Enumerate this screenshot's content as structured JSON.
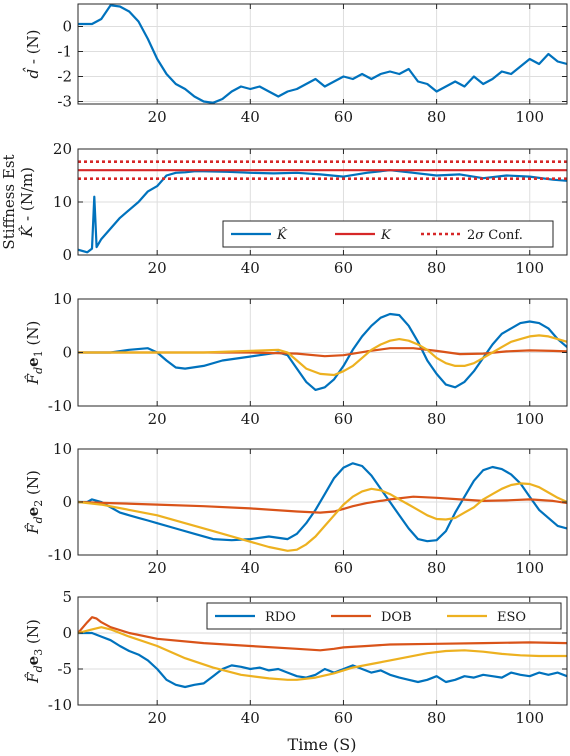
{
  "chart_data": [
    {
      "type": "line",
      "ylabel": "ˆd - (N)",
      "xlim": [
        3,
        108
      ],
      "ylim": [
        -3.1,
        0.9
      ],
      "xticks": [
        20,
        40,
        60,
        80,
        100
      ],
      "yticks": [
        -3,
        -2,
        -1,
        0
      ],
      "grid": true,
      "series": [
        {
          "color": "#0072BD",
          "x": [
            3,
            6,
            8,
            10,
            12,
            14,
            16,
            18,
            20,
            22,
            24,
            26,
            28,
            30,
            32,
            34,
            36,
            38,
            40,
            42,
            44,
            46,
            48,
            50,
            52,
            54,
            56,
            58,
            60,
            62,
            64,
            66,
            68,
            70,
            72,
            74,
            76,
            78,
            80,
            82,
            84,
            86,
            88,
            90,
            92,
            94,
            96,
            98,
            100,
            102,
            104,
            106,
            108
          ],
          "y": [
            0.1,
            0.1,
            0.3,
            0.85,
            0.8,
            0.6,
            0.2,
            -0.5,
            -1.3,
            -1.9,
            -2.3,
            -2.5,
            -2.8,
            -3.0,
            -3.05,
            -2.9,
            -2.6,
            -2.4,
            -2.5,
            -2.4,
            -2.6,
            -2.8,
            -2.6,
            -2.5,
            -2.3,
            -2.1,
            -2.4,
            -2.2,
            -2.0,
            -2.1,
            -1.9,
            -2.1,
            -1.9,
            -1.8,
            -1.9,
            -1.7,
            -2.2,
            -2.3,
            -2.6,
            -2.4,
            -2.2,
            -2.4,
            -2.0,
            -2.3,
            -2.1,
            -1.8,
            -1.9,
            -1.6,
            -1.3,
            -1.5,
            -1.1,
            -1.4,
            -1.5
          ]
        }
      ]
    },
    {
      "type": "line",
      "ylabel_top": "Stiffness Est",
      "ylabel": "ˆK - (N/m)",
      "xlim": [
        3,
        108
      ],
      "ylim": [
        0,
        20
      ],
      "xticks": [
        20,
        40,
        60,
        80,
        100
      ],
      "yticks": [
        0,
        10,
        20
      ],
      "grid": true,
      "legend": "bottom-right",
      "series": [
        {
          "name": "ˆK",
          "color": "#0072BD",
          "x": [
            3,
            5,
            6,
            6.5,
            7,
            8,
            10,
            12,
            14,
            16,
            18,
            20,
            22,
            24,
            26,
            28,
            30,
            35,
            40,
            45,
            50,
            55,
            60,
            65,
            70,
            75,
            80,
            85,
            90,
            95,
            100,
            105,
            108
          ],
          "y": [
            1.0,
            0.5,
            1.2,
            11.0,
            1.5,
            3.0,
            5.0,
            7.0,
            8.5,
            10.0,
            12.0,
            13.0,
            15.0,
            15.5,
            15.6,
            15.8,
            15.8,
            15.7,
            15.5,
            15.4,
            15.5,
            15.2,
            14.8,
            15.5,
            16.0,
            15.5,
            15.0,
            15.2,
            14.5,
            15.0,
            14.8,
            14.2,
            14.0
          ]
        },
        {
          "name": "K",
          "color": "#D62728",
          "x": [
            3,
            108
          ],
          "y": [
            16,
            16
          ]
        },
        {
          "name": "2σ Conf.",
          "color": "#D62728",
          "dashed": true,
          "x": [
            3,
            108
          ],
          "y": [
            17.6,
            17.6
          ]
        },
        {
          "color": "#D62728",
          "dashed": true,
          "x": [
            3,
            108
          ],
          "y": [
            14.4,
            14.4
          ]
        }
      ]
    },
    {
      "type": "line",
      "ylabel": "ˆFde1 (N)",
      "xlim": [
        3,
        108
      ],
      "ylim": [
        -10,
        10
      ],
      "xticks": [
        20,
        40,
        60,
        80,
        100
      ],
      "yticks": [
        -10,
        0,
        10
      ],
      "grid": true,
      "series": [
        {
          "name": "RDO",
          "color": "#0072BD",
          "x": [
            3,
            6,
            10,
            14,
            18,
            20,
            22,
            24,
            26,
            30,
            34,
            38,
            42,
            46,
            48,
            50,
            52,
            54,
            56,
            58,
            60,
            62,
            64,
            66,
            68,
            70,
            72,
            74,
            76,
            78,
            80,
            82,
            84,
            86,
            88,
            90,
            92,
            94,
            96,
            98,
            100,
            102,
            104,
            106,
            108
          ],
          "y": [
            0,
            0,
            0,
            0.5,
            0.8,
            0,
            -1.5,
            -2.8,
            -3.0,
            -2.5,
            -1.5,
            -1.0,
            -0.5,
            0,
            -0.5,
            -3.0,
            -5.5,
            -7.0,
            -6.5,
            -5.0,
            -2.5,
            0.5,
            3.0,
            5.0,
            6.5,
            7.2,
            7.0,
            5.0,
            2.0,
            -1.5,
            -4.0,
            -6.0,
            -6.5,
            -5.5,
            -3.5,
            -1.0,
            1.5,
            3.5,
            4.5,
            5.5,
            5.8,
            5.5,
            4.5,
            2.5,
            1.0
          ]
        },
        {
          "name": "DOB",
          "color": "#D95319",
          "x": [
            3,
            20,
            40,
            50,
            56,
            60,
            65,
            70,
            75,
            80,
            85,
            90,
            95,
            100,
            105,
            108
          ],
          "y": [
            0,
            0,
            0,
            -0.2,
            -0.7,
            -0.5,
            0.2,
            0.8,
            0.8,
            0.3,
            -0.3,
            -0.2,
            0.2,
            0.4,
            0.3,
            0.2
          ]
        },
        {
          "name": "ESO",
          "color": "#EDB120",
          "x": [
            3,
            10,
            20,
            30,
            40,
            46,
            48,
            50,
            52,
            55,
            58,
            60,
            62,
            64,
            66,
            68,
            70,
            72,
            74,
            76,
            78,
            80,
            82,
            84,
            86,
            88,
            90,
            92,
            94,
            96,
            98,
            100,
            102,
            104,
            106,
            108
          ],
          "y": [
            0,
            0,
            0,
            0,
            0.3,
            0.5,
            0,
            -1.5,
            -3.0,
            -4.0,
            -4.2,
            -3.5,
            -2.5,
            -1.0,
            0.5,
            1.5,
            2.2,
            2.5,
            2.2,
            1.5,
            0.5,
            -1.0,
            -2.0,
            -2.5,
            -2.5,
            -2.0,
            -1.0,
            0,
            1.0,
            2.0,
            2.5,
            3.0,
            3.2,
            3.0,
            2.5,
            2.0
          ]
        }
      ]
    },
    {
      "type": "line",
      "ylabel": "ˆFde2 (N)",
      "xlim": [
        3,
        108
      ],
      "ylim": [
        -10,
        10
      ],
      "xticks": [
        20,
        40,
        60,
        80,
        100
      ],
      "yticks": [
        -10,
        0,
        10
      ],
      "grid": true,
      "series": [
        {
          "name": "RDO",
          "color": "#0072BD",
          "x": [
            3,
            5,
            6,
            8,
            10,
            12,
            14,
            16,
            18,
            20,
            24,
            28,
            32,
            36,
            40,
            44,
            48,
            50,
            52,
            54,
            56,
            58,
            60,
            62,
            64,
            66,
            68,
            70,
            72,
            74,
            76,
            78,
            80,
            82,
            84,
            86,
            88,
            90,
            92,
            94,
            96,
            98,
            100,
            102,
            104,
            106,
            108
          ],
          "y": [
            0,
            0,
            0.5,
            0,
            -1.0,
            -2.0,
            -2.5,
            -3.0,
            -3.5,
            -4.0,
            -5.0,
            -6.0,
            -7.0,
            -7.2,
            -7.0,
            -6.5,
            -7.0,
            -6.0,
            -4.0,
            -1.5,
            1.5,
            4.5,
            6.5,
            7.3,
            6.8,
            5.0,
            2.5,
            0,
            -2.5,
            -5.0,
            -7.0,
            -7.4,
            -7.2,
            -5.5,
            -2.0,
            1.0,
            4.0,
            6.0,
            6.6,
            6.2,
            5.2,
            3.5,
            1.0,
            -1.5,
            -3.0,
            -4.5,
            -5.0
          ]
        },
        {
          "name": "DOB",
          "color": "#D95319",
          "x": [
            3,
            10,
            20,
            30,
            40,
            50,
            55,
            58,
            60,
            62,
            65,
            70,
            75,
            80,
            85,
            90,
            95,
            100,
            105,
            108
          ],
          "y": [
            0,
            -0.2,
            -0.5,
            -0.8,
            -1.2,
            -1.8,
            -2.0,
            -1.8,
            -1.3,
            -0.8,
            -0.2,
            0.5,
            1.0,
            0.8,
            0.5,
            0.2,
            0.3,
            0.5,
            0.2,
            -0.2
          ]
        },
        {
          "name": "ESO",
          "color": "#EDB120",
          "x": [
            3,
            8,
            14,
            20,
            26,
            32,
            38,
            44,
            48,
            50,
            52,
            54,
            56,
            58,
            60,
            62,
            64,
            66,
            68,
            70,
            72,
            74,
            76,
            78,
            80,
            82,
            84,
            86,
            88,
            90,
            92,
            94,
            96,
            98,
            100,
            102,
            104,
            106,
            108
          ],
          "y": [
            0,
            -0.5,
            -1.5,
            -2.5,
            -4.0,
            -5.5,
            -7.0,
            -8.5,
            -9.2,
            -9.0,
            -8.0,
            -6.5,
            -4.5,
            -2.5,
            -0.5,
            1.0,
            2.0,
            2.5,
            2.2,
            1.5,
            0.5,
            -0.5,
            -1.5,
            -2.5,
            -3.2,
            -3.3,
            -3.0,
            -2.0,
            -1.0,
            0.5,
            1.5,
            2.5,
            3.2,
            3.5,
            3.4,
            2.8,
            1.8,
            0.8,
            0
          ]
        }
      ]
    },
    {
      "type": "line",
      "ylabel": "ˆFde3 (N)",
      "xlabel": "Time (S)",
      "xlim": [
        3,
        108
      ],
      "ylim": [
        -10,
        5
      ],
      "xticks": [
        20,
        40,
        60,
        80,
        100
      ],
      "yticks": [
        -10,
        -5,
        0,
        5
      ],
      "grid": true,
      "legend": "top-right",
      "series": [
        {
          "name": "RDO",
          "color": "#0072BD",
          "x": [
            3,
            5,
            6,
            8,
            10,
            12,
            14,
            16,
            18,
            20,
            22,
            24,
            26,
            28,
            30,
            32,
            34,
            36,
            38,
            40,
            42,
            44,
            46,
            48,
            50,
            52,
            54,
            56,
            58,
            60,
            62,
            64,
            66,
            68,
            70,
            72,
            74,
            76,
            78,
            80,
            82,
            84,
            86,
            88,
            90,
            92,
            94,
            96,
            98,
            100,
            102,
            104,
            106,
            108
          ],
          "y": [
            0,
            0,
            0,
            -0.5,
            -1.0,
            -1.8,
            -2.5,
            -3.0,
            -3.8,
            -5.0,
            -6.5,
            -7.2,
            -7.5,
            -7.2,
            -7.0,
            -6.0,
            -5.0,
            -4.5,
            -4.7,
            -5.0,
            -4.8,
            -5.2,
            -5.0,
            -5.5,
            -6.0,
            -6.2,
            -5.8,
            -5.0,
            -5.5,
            -5.0,
            -4.5,
            -5.0,
            -5.5,
            -5.2,
            -5.8,
            -6.2,
            -6.5,
            -6.8,
            -6.5,
            -6.0,
            -6.8,
            -6.5,
            -6.0,
            -6.2,
            -5.8,
            -6.0,
            -6.2,
            -5.5,
            -5.8,
            -6.0,
            -5.5,
            -5.8,
            -5.5,
            -6.0
          ]
        },
        {
          "name": "DOB",
          "color": "#D95319",
          "x": [
            3,
            5,
            6,
            7,
            8,
            10,
            14,
            20,
            30,
            40,
            50,
            55,
            58,
            60,
            65,
            70,
            80,
            90,
            100,
            108
          ],
          "y": [
            0,
            1.5,
            2.2,
            2.0,
            1.5,
            0.8,
            0,
            -0.8,
            -1.4,
            -1.8,
            -2.2,
            -2.4,
            -2.2,
            -2.0,
            -1.8,
            -1.6,
            -1.5,
            -1.4,
            -1.3,
            -1.4
          ]
        },
        {
          "name": "ESO",
          "color": "#EDB120",
          "x": [
            3,
            6,
            8,
            10,
            14,
            20,
            26,
            32,
            38,
            44,
            48,
            50,
            54,
            58,
            62,
            66,
            70,
            74,
            78,
            82,
            86,
            90,
            94,
            98,
            102,
            106,
            108
          ],
          "y": [
            0,
            0.5,
            0.8,
            0.5,
            -0.5,
            -1.8,
            -3.5,
            -4.8,
            -5.8,
            -6.3,
            -6.5,
            -6.5,
            -6.2,
            -5.6,
            -4.8,
            -4.3,
            -3.8,
            -3.3,
            -2.8,
            -2.5,
            -2.4,
            -2.6,
            -2.9,
            -3.1,
            -3.2,
            -3.2,
            -3.2
          ]
        }
      ]
    }
  ]
}
